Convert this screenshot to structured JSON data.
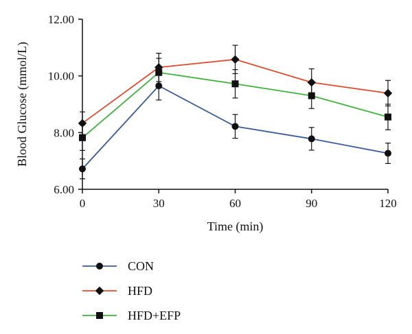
{
  "chart_data": {
    "type": "line",
    "title": "",
    "xlabel": "Time (min)",
    "ylabel": "Blood Glucose (mmol/L)",
    "x": [
      0,
      30,
      60,
      90,
      120
    ],
    "x_tick_labels": [
      "0",
      "30",
      "60",
      "90",
      "120"
    ],
    "xlim": [
      0,
      120
    ],
    "ylim": [
      6.0,
      12.0
    ],
    "y_ticks": [
      6.0,
      8.0,
      10.0,
      12.0
    ],
    "y_tick_labels": [
      "6.00",
      "8.00",
      "10.00",
      "12.00"
    ],
    "grid": false,
    "legend_position": "bottom-left",
    "series": [
      {
        "name": "CON",
        "marker": "circle",
        "color": "#3a5a9c",
        "values": [
          6.72,
          9.65,
          8.22,
          7.78,
          7.27
        ],
        "errors": [
          0.35,
          0.5,
          0.42,
          0.4,
          0.36
        ]
      },
      {
        "name": "HFD",
        "marker": "diamond",
        "color": "#e04a2e",
        "values": [
          8.33,
          10.3,
          10.58,
          9.77,
          9.39
        ],
        "errors": [
          0.4,
          0.5,
          0.5,
          0.48,
          0.45
        ]
      },
      {
        "name": "HFD+EFP",
        "marker": "square",
        "color": "#3db33d",
        "values": [
          7.82,
          10.12,
          9.72,
          9.3,
          8.55
        ],
        "errors": [
          0.45,
          0.5,
          0.5,
          0.45,
          0.45
        ]
      }
    ]
  }
}
